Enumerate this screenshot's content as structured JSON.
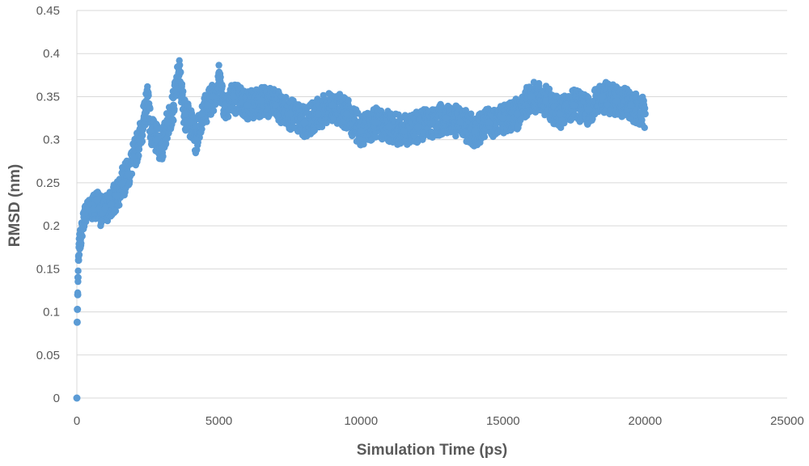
{
  "chart_data": {
    "type": "scatter",
    "title": "",
    "xlabel": "Simulation Time (ps)",
    "ylabel": "RMSD (nm)",
    "xlim": [
      0,
      25000
    ],
    "ylim": [
      0,
      0.45
    ],
    "x_ticks": [
      0,
      5000,
      10000,
      15000,
      20000,
      25000
    ],
    "y_ticks": [
      0,
      0.05,
      0.1,
      0.15,
      0.2,
      0.25,
      0.3,
      0.35,
      0.4,
      0.45
    ],
    "x_tick_labels": [
      "0",
      "5000",
      "10000",
      "15000",
      "20000",
      "25000"
    ],
    "y_tick_labels": [
      "0",
      "0.05",
      "0.1",
      "0.15",
      "0.2",
      "0.25",
      "0.3",
      "0.35",
      "0.4",
      "0.45"
    ],
    "grid": "horizontal",
    "legend": "none",
    "marker_color": "#5b9bd5",
    "series": [
      {
        "x": [
          0,
          10,
          20,
          30,
          40,
          60,
          80,
          100,
          150,
          200,
          250,
          300,
          400,
          500,
          600,
          700,
          800,
          900,
          1000,
          1200,
          1400,
          1600,
          1800,
          2000,
          2200,
          2400,
          2500,
          2600,
          2800,
          3000,
          3200,
          3400,
          3600,
          3700,
          3800,
          4000,
          4200,
          4400,
          4600,
          4800,
          5000,
          5200,
          5500,
          6000,
          6500,
          7000,
          7500,
          8000,
          8500,
          9000,
          9500,
          10000,
          10500,
          11000,
          11500,
          12000,
          12500,
          13000,
          13500,
          14000,
          14500,
          15000,
          15500,
          16000,
          16500,
          17000,
          17500,
          18000,
          18500,
          19000,
          19500,
          20000
        ],
        "y": [
          0.0,
          0.088,
          0.103,
          0.12,
          0.14,
          0.16,
          0.175,
          0.18,
          0.19,
          0.2,
          0.21,
          0.215,
          0.22,
          0.225,
          0.22,
          0.23,
          0.22,
          0.215,
          0.22,
          0.225,
          0.235,
          0.25,
          0.26,
          0.28,
          0.3,
          0.33,
          0.355,
          0.31,
          0.3,
          0.29,
          0.32,
          0.34,
          0.38,
          0.35,
          0.33,
          0.32,
          0.3,
          0.33,
          0.34,
          0.35,
          0.37,
          0.34,
          0.35,
          0.34,
          0.345,
          0.34,
          0.33,
          0.32,
          0.33,
          0.34,
          0.33,
          0.31,
          0.32,
          0.315,
          0.31,
          0.315,
          0.32,
          0.325,
          0.32,
          0.31,
          0.32,
          0.325,
          0.33,
          0.35,
          0.345,
          0.33,
          0.34,
          0.335,
          0.35,
          0.345,
          0.34,
          0.33
        ]
      }
    ]
  }
}
